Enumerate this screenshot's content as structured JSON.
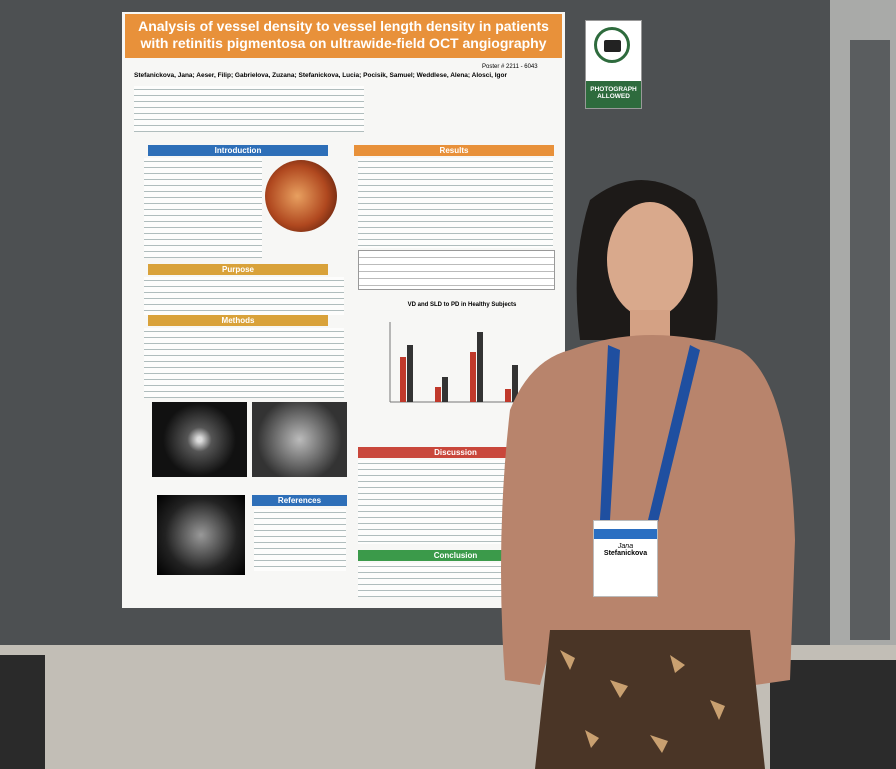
{
  "poster": {
    "title": "Analysis of vessel density to vessel length density in patients with retinitis pigmentosa on ultrawide-field OCT angiography",
    "poster_number": "Poster # 2211 - 6043",
    "authors": "Stefanickova, Jana; Aeser, Filip; Gabrielova, Zuzana; Stefanickova, Lucia; Pocisik, Samuel; Weddlese, Alena; Alosci, Igor",
    "sections": {
      "introduction": "Introduction",
      "results": "Results",
      "purpose": "Purpose",
      "methods": "Methods",
      "discussion": "Discussion",
      "references": "References",
      "conclusion": "Conclusion"
    },
    "chart_title": "VD and SLD to PD in Healthy Subjects"
  },
  "sign": {
    "label": "PHOTOGRAPH ALLOWED"
  },
  "badge": {
    "first_name": "Jana",
    "last_name": "Stefanickova"
  }
}
